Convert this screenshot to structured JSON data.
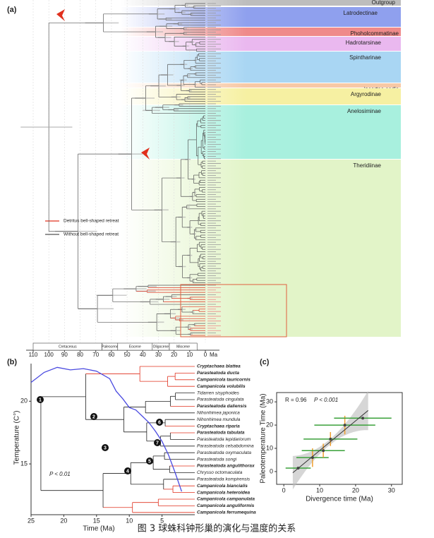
{
  "label_a": "(a)",
  "label_b": "(b)",
  "label_c": "(c)",
  "panel_a": {
    "clades": [
      {
        "name": "Outgroup",
        "color": "#bdbdbd"
      },
      {
        "name": "Latrodectinae",
        "color": "#8fa0ee"
      },
      {
        "name": "Phoholcommatinae",
        "color": "#ef8a8a"
      },
      {
        "name": "Hadrotarsinae",
        "color": "#eab8ef"
      },
      {
        "name": "Spintharinae",
        "color": "#a9d6f3"
      },
      {
        "name": "incertae sedis",
        "color": "#f7c9a6"
      },
      {
        "name": "Argyrodinae",
        "color": "#f6f0a2"
      },
      {
        "name": "Anelosiminae",
        "color": "#a8f0de"
      },
      {
        "name": "Theridiinae",
        "color": "#e2f4c8"
      }
    ],
    "legend": [
      {
        "name": "Detritus bell-shaped retreat",
        "color": "#e0301e"
      },
      {
        "name": "Without bell-shaped retreat",
        "color": "#555555"
      }
    ],
    "epochs": [
      {
        "name": "Cretaceous",
        "start": 110,
        "end": 66
      },
      {
        "name": "Paleocene",
        "start": 66,
        "end": 56
      },
      {
        "name": "Eocene",
        "start": 56,
        "end": 33.9
      },
      {
        "name": "Oligocene",
        "start": 33.9,
        "end": 23
      },
      {
        "name": "Miocene",
        "start": 23,
        "end": 5.3
      }
    ],
    "xlim": [
      110,
      0
    ],
    "xticks": [
      110,
      100,
      90,
      80,
      70,
      60,
      50,
      40,
      30,
      20,
      10,
      0
    ],
    "unit": "Ma"
  },
  "chart_data": [
    {
      "type": "line",
      "x_label": "Time (Ma)",
      "y_label": "Temperature (C°)",
      "xlim": [
        25,
        0
      ],
      "xticks": [
        25,
        20,
        15,
        10,
        5
      ],
      "ylim": [
        10.95,
        23
      ],
      "yticks": [
        15,
        20
      ],
      "x": [
        25,
        23,
        21,
        19,
        17,
        15,
        13,
        12,
        11,
        10,
        9,
        8,
        7,
        6,
        5,
        4,
        3,
        2
      ],
      "values": [
        21.5,
        22.3,
        22.7,
        22.5,
        22.6,
        22.4,
        21.8,
        20.8,
        20.2,
        19.5,
        19.3,
        18.8,
        18.3,
        17.6,
        16.8,
        15.7,
        14.3,
        12.8
      ],
      "color": "#4a4ae0",
      "annotation": "P < 0.01",
      "nodes": [
        "1",
        "2",
        "3",
        "4",
        "5",
        "6",
        "7"
      ],
      "tips": [
        {
          "name": "Cryptachaea blattea",
          "color": "#e0301e"
        },
        {
          "name": "Parasteatoda ducta",
          "color": "#e0301e"
        },
        {
          "name": "Campanicola tauricornis",
          "color": "#e0301e"
        },
        {
          "name": "Campanicola volubilis",
          "color": "#e0301e"
        },
        {
          "name": "Tidarren sisyphoides",
          "color": "#222222"
        },
        {
          "name": "Parasteatoda cingulata",
          "color": "#222222"
        },
        {
          "name": "Parasteatoda daliensis",
          "color": "#e0301e"
        },
        {
          "name": "Nihonhimea japonica",
          "color": "#222222"
        },
        {
          "name": "Nihonhimea mundula",
          "color": "#222222"
        },
        {
          "name": "Cryptachaea riparia",
          "color": "#e0301e"
        },
        {
          "name": "Parasteatoda tabulata",
          "color": "#e0301e"
        },
        {
          "name": "Parasteatoda lepidariorum",
          "color": "#222222"
        },
        {
          "name": "Parasteatoda celsabdomina",
          "color": "#222222"
        },
        {
          "name": "Parasteatoda oxymaculata",
          "color": "#222222"
        },
        {
          "name": "Parasteatoda songi",
          "color": "#222222"
        },
        {
          "name": "Parasteatoda angulithorax",
          "color": "#e0301e"
        },
        {
          "name": "Chrysso octomaculata",
          "color": "#222222"
        },
        {
          "name": "Parasteatoda kompirensis",
          "color": "#222222"
        },
        {
          "name": "Campanicola biancialis",
          "color": "#e0301e"
        },
        {
          "name": "Campanicola heteroidea",
          "color": "#e0301e"
        },
        {
          "name": "Campanicola campanulata",
          "color": "#e0301e"
        },
        {
          "name": "Campanicola anguliformis",
          "color": "#e0301e"
        },
        {
          "name": "Campanicola ferrumequina",
          "color": "#e0301e"
        }
      ]
    },
    {
      "type": "scatter",
      "x_label": "Divergence time (Ma)",
      "y_label": "Paleotemperature Time (Ma)",
      "xlim": [
        -2,
        33
      ],
      "xticks": [
        0,
        10,
        20,
        30
      ],
      "ylim": [
        -5.5,
        34
      ],
      "yticks": [
        0,
        10,
        20,
        30
      ],
      "x": [
        4,
        8,
        11,
        13,
        17,
        22
      ],
      "values": [
        1.5,
        6,
        9,
        14,
        20,
        23
      ],
      "x_errors": [
        3.5,
        4.5,
        6,
        7.5,
        8.5,
        8
      ],
      "y_errors": [
        null,
        4,
        3,
        3,
        4,
        null
      ],
      "color": "#444444",
      "x_error_color": "#3aa13a",
      "y_error_color": "#f0a030",
      "fit_color": "#333333",
      "stat_r": "R = 0.96",
      "stat_p": "P < 0.001"
    }
  ],
  "caption": "图 3 球蛛科钟形巢的演化与温度的关系"
}
